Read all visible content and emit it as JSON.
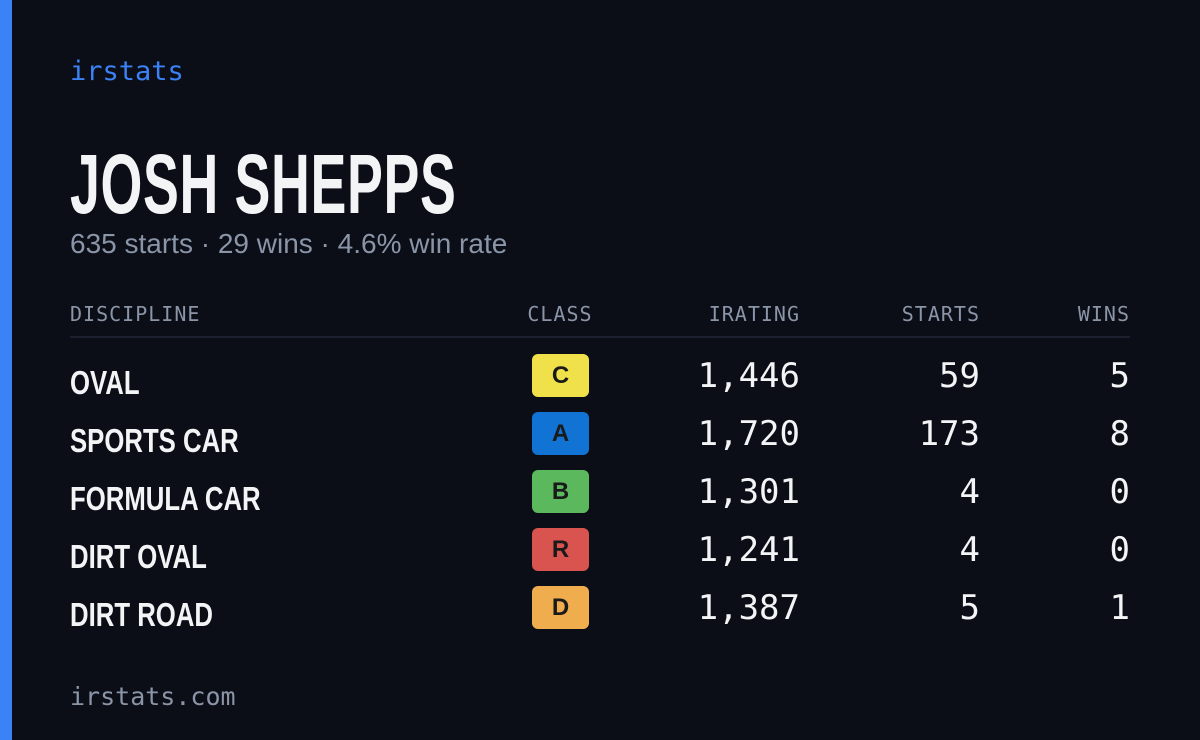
{
  "brand": "irstats",
  "profile": {
    "name": "JOSH SHEPPS",
    "summary": "635 starts · 29 wins · 4.6% win rate"
  },
  "table": {
    "headers": [
      "DISCIPLINE",
      "CLASS",
      "IRATING",
      "STARTS",
      "WINS"
    ],
    "rows": [
      {
        "discipline": "OVAL",
        "class": "C",
        "class_color": "#f0e14a",
        "irating": "1,446",
        "starts": "59",
        "wins": "5"
      },
      {
        "discipline": "SPORTS CAR",
        "class": "A",
        "class_color": "#1173d4",
        "irating": "1,720",
        "starts": "173",
        "wins": "8"
      },
      {
        "discipline": "FORMULA CAR",
        "class": "B",
        "class_color": "#5cb85c",
        "irating": "1,301",
        "starts": "4",
        "wins": "0"
      },
      {
        "discipline": "DIRT OVAL",
        "class": "R",
        "class_color": "#d9534f",
        "irating": "1,241",
        "starts": "4",
        "wins": "0"
      },
      {
        "discipline": "DIRT ROAD",
        "class": "D",
        "class_color": "#f0ad4e",
        "irating": "1,387",
        "starts": "5",
        "wins": "1"
      }
    ]
  },
  "footer": "irstats.com"
}
